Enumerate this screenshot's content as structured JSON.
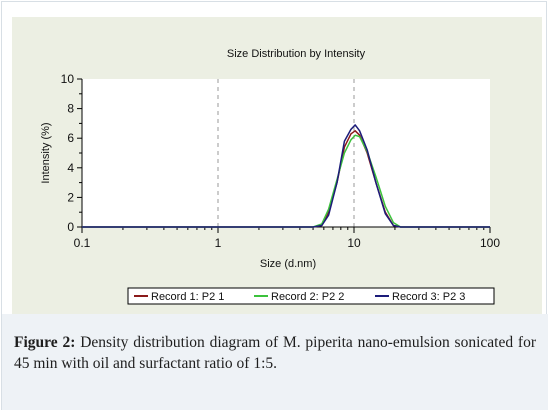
{
  "chart_data": {
    "type": "line",
    "title": "Size Distribution by Intensity",
    "xlabel": "Size (d.nm)",
    "ylabel": "Intensity (%)",
    "x_scale": "log",
    "xlim": [
      0.1,
      100
    ],
    "ylim": [
      0,
      10
    ],
    "x_ticks": [
      0.1,
      1,
      10,
      100
    ],
    "x_tick_labels": [
      "0.1",
      "1",
      "10",
      "100"
    ],
    "y_ticks": [
      0,
      2,
      4,
      6,
      8,
      10
    ],
    "y_tick_labels": [
      "0",
      "2",
      "4",
      "6",
      "8",
      "10"
    ],
    "grid": "vertical dashed at decades",
    "legend_position": "bottom",
    "series": [
      {
        "name": "Record 1: P2 1",
        "color": "#8b1a1a",
        "x": [
          0.1,
          5,
          5.8,
          6.5,
          7.5,
          8.5,
          9.5,
          10.2,
          11,
          12.5,
          14.5,
          17,
          19.5,
          22,
          100
        ],
        "values": [
          0,
          0,
          0.1,
          1.0,
          3.0,
          5.4,
          6.3,
          6.5,
          6.2,
          5.0,
          3.0,
          1.0,
          0.1,
          0,
          0
        ]
      },
      {
        "name": "Record 2: P2 2",
        "color": "#3cc23c",
        "x": [
          0.1,
          5,
          5.8,
          6.5,
          7.5,
          8.5,
          9.5,
          10.2,
          11,
          12.5,
          14.5,
          17,
          19.5,
          22,
          100
        ],
        "values": [
          0,
          0,
          0.2,
          1.2,
          3.2,
          5.0,
          5.9,
          6.2,
          6.1,
          5.1,
          3.4,
          1.4,
          0.3,
          0,
          0
        ]
      },
      {
        "name": "Record 3: P2 3",
        "color": "#1c1c7a",
        "x": [
          0.1,
          5,
          5.8,
          6.5,
          7.5,
          8.5,
          9.5,
          10.2,
          11,
          12.5,
          14.5,
          17,
          19.5,
          22,
          100
        ],
        "values": [
          0,
          0,
          0.1,
          0.8,
          3.0,
          5.8,
          6.6,
          6.9,
          6.5,
          5.2,
          3.0,
          0.9,
          0.1,
          0,
          0
        ]
      }
    ]
  },
  "caption": {
    "label": "Figure 2:",
    "text": "Density distribution diagram of M. piperita nano-emulsion sonicated for 45 min with oil and surfactant ratio of 1:5."
  }
}
